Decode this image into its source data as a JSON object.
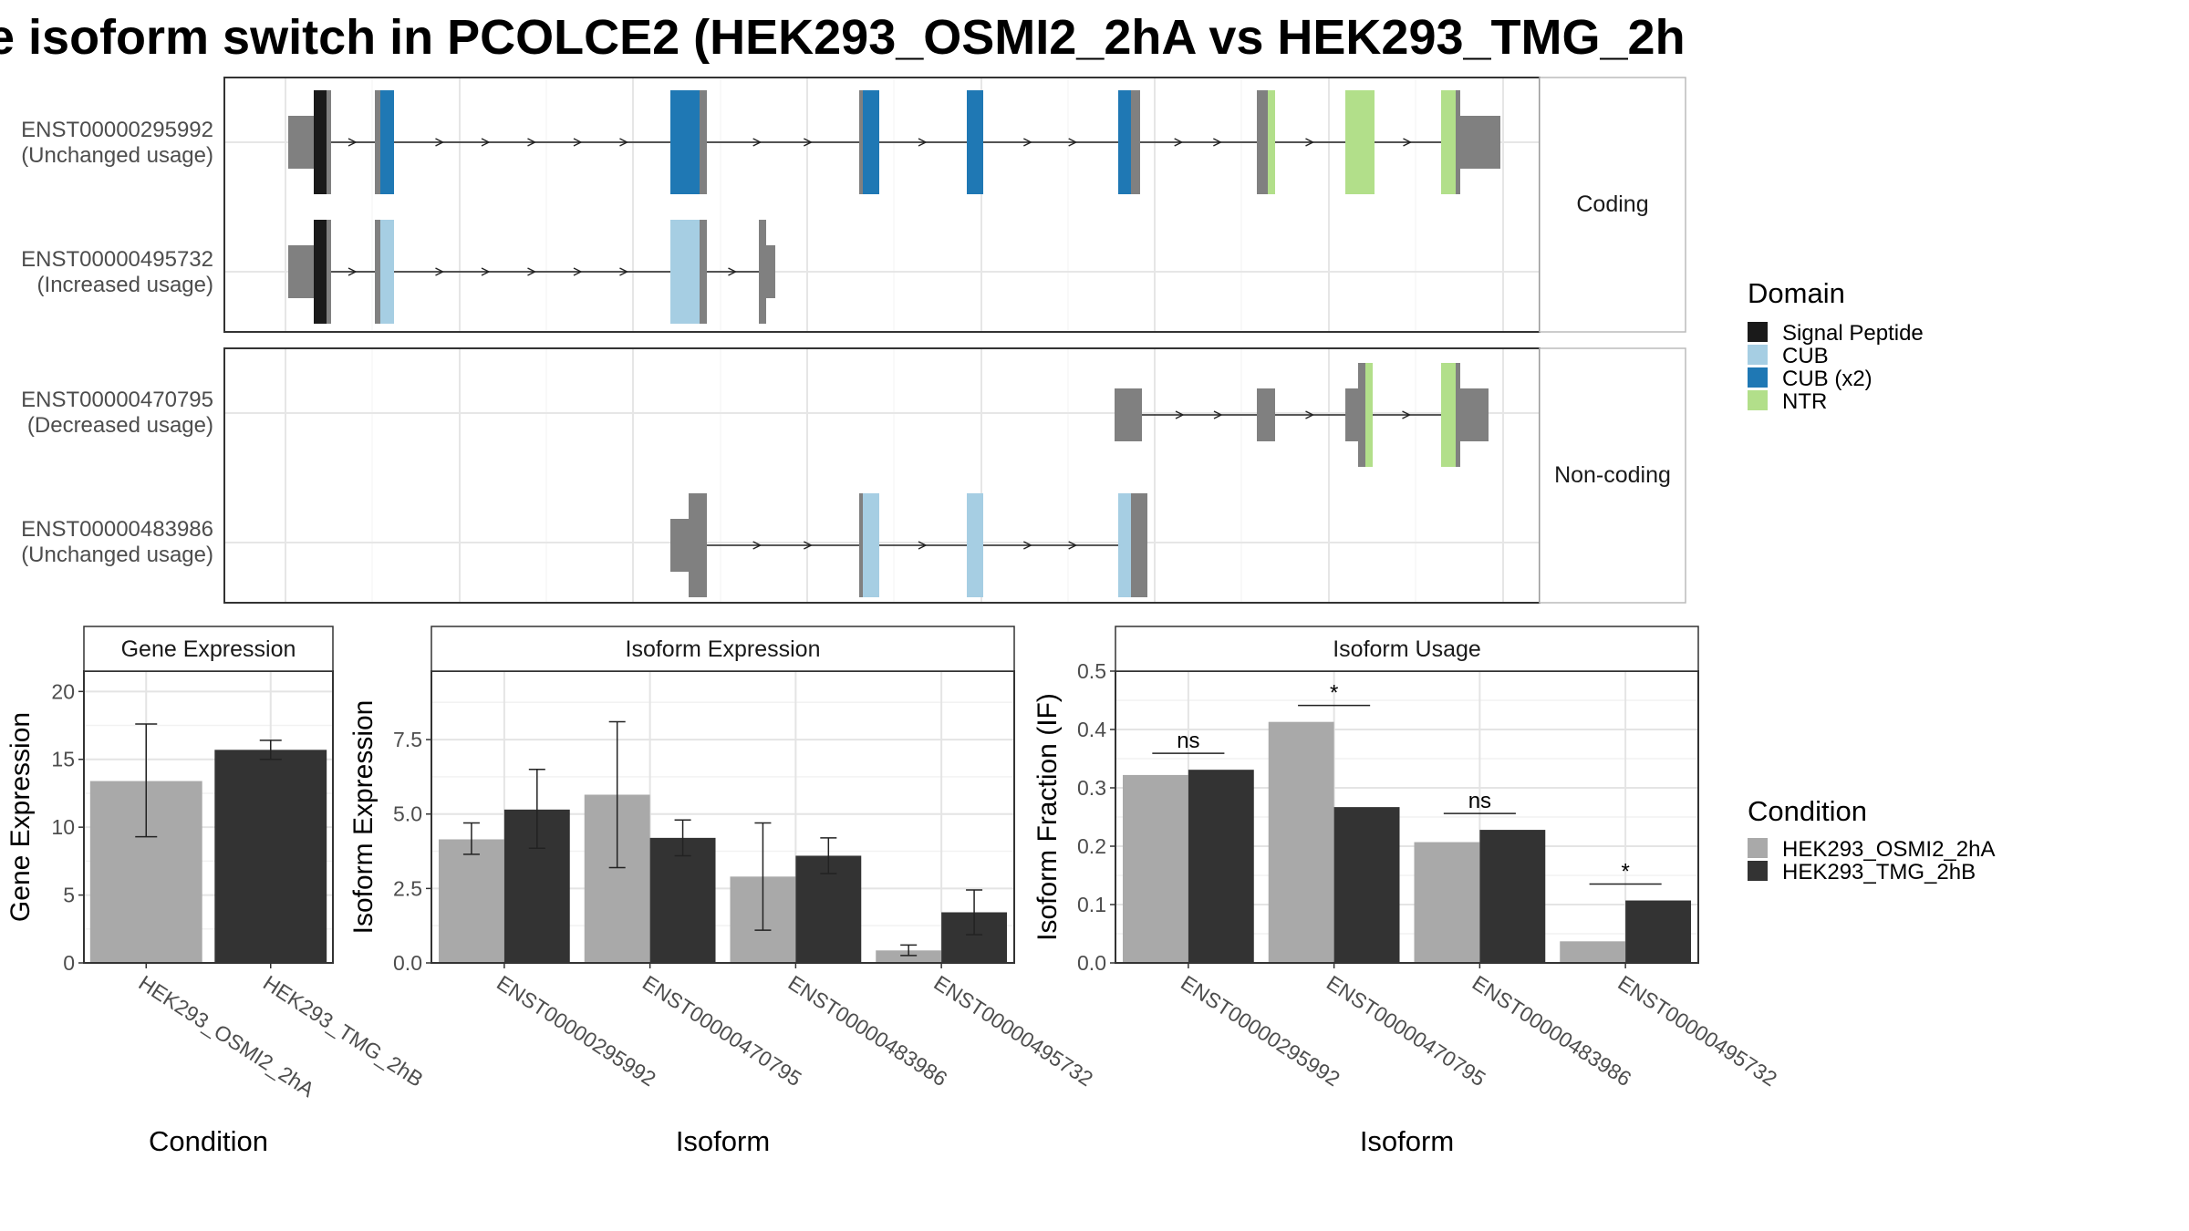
{
  "title": "e isoform switch in PCOLCE2 (HEK293_OSMI2_2hA vs HEK293_TMG_2h",
  "structure": {
    "panels": [
      {
        "label": "Coding",
        "transcripts": [
          {
            "id": "ENST00000295992",
            "usage": "(Unchanged usage)"
          },
          {
            "id": "ENST00000495732",
            "usage": "(Increased usage)"
          }
        ]
      },
      {
        "label": "Non-coding",
        "transcripts": [
          {
            "id": "ENST00000470795",
            "usage": "(Decreased usage)"
          },
          {
            "id": "ENST00000483986",
            "usage": "(Unchanged usage)"
          }
        ]
      }
    ],
    "colors": {
      "exon": "#808080",
      "Signal Peptide": "#1a1a1a",
      "CUB": "#a6cee3",
      "CUB (x2)": "#1f78b4",
      "NTR": "#b2df8a"
    }
  },
  "legend_domain": {
    "title": "Domain",
    "items": [
      {
        "label": "Signal Peptide",
        "color": "#1a1a1a"
      },
      {
        "label": "CUB",
        "color": "#a6cee3"
      },
      {
        "label": "CUB (x2)",
        "color": "#1f78b4"
      },
      {
        "label": "NTR",
        "color": "#b2df8a"
      }
    ]
  },
  "legend_condition": {
    "title": "Condition",
    "items": [
      {
        "label": "HEK293_OSMI2_2hA",
        "color": "#a9a9a9"
      },
      {
        "label": "HEK293_TMG_2hB",
        "color": "#333333"
      }
    ]
  },
  "chart_data": [
    {
      "type": "bar",
      "title": "Gene Expression",
      "xlabel": "Condition",
      "ylabel": "Gene Expression",
      "categories": [
        "HEK293_OSMI2_2hA",
        "HEK293_TMG_2hB"
      ],
      "values": [
        13.4,
        15.7
      ],
      "error_low": [
        9.3,
        15.0
      ],
      "error_high": [
        17.6,
        16.4
      ],
      "ylim": [
        0,
        21.5
      ],
      "yticks": [
        0,
        5,
        10,
        15,
        20
      ],
      "ytick_labels": [
        "0",
        "5",
        "10",
        "15",
        "20"
      ]
    },
    {
      "type": "bar",
      "title": "Isoform Expression",
      "xlabel": "Isoform",
      "ylabel": "Isoform Expression",
      "categories": [
        "ENST00000295992",
        "ENST00000470795",
        "ENST00000483986",
        "ENST00000495732"
      ],
      "series": [
        {
          "name": "HEK293_OSMI2_2hA",
          "values": [
            4.15,
            5.65,
            2.9,
            0.42
          ],
          "error_low": [
            3.65,
            3.2,
            1.1,
            0.25
          ],
          "error_high": [
            4.7,
            8.1,
            4.7,
            0.6
          ]
        },
        {
          "name": "HEK293_TMG_2hB",
          "values": [
            5.15,
            4.2,
            3.6,
            1.7
          ],
          "error_low": [
            3.85,
            3.6,
            3.0,
            0.95
          ],
          "error_high": [
            6.5,
            4.8,
            4.2,
            2.45
          ]
        }
      ],
      "ylim": [
        0,
        9.8
      ],
      "yticks": [
        0,
        2.5,
        5,
        7.5
      ],
      "ytick_labels": [
        "0.0",
        "2.5",
        "5.0",
        "7.5"
      ]
    },
    {
      "type": "bar",
      "title": "Isoform Usage",
      "xlabel": "Isoform",
      "ylabel": "Isoform Fraction (IF)",
      "categories": [
        "ENST00000295992",
        "ENST00000470795",
        "ENST00000483986",
        "ENST00000495732"
      ],
      "series": [
        {
          "name": "HEK293_OSMI2_2hA",
          "values": [
            0.322,
            0.413,
            0.207,
            0.037
          ]
        },
        {
          "name": "HEK293_TMG_2hB",
          "values": [
            0.331,
            0.267,
            0.228,
            0.107
          ]
        }
      ],
      "annotations": [
        "ns",
        "*",
        "ns",
        "*"
      ],
      "ylim": [
        0,
        0.5
      ],
      "yticks": [
        0,
        0.1,
        0.2,
        0.3,
        0.4,
        0.5
      ],
      "ytick_labels": [
        "0.0",
        "0.1",
        "0.2",
        "0.3",
        "0.4",
        "0.5"
      ]
    }
  ]
}
